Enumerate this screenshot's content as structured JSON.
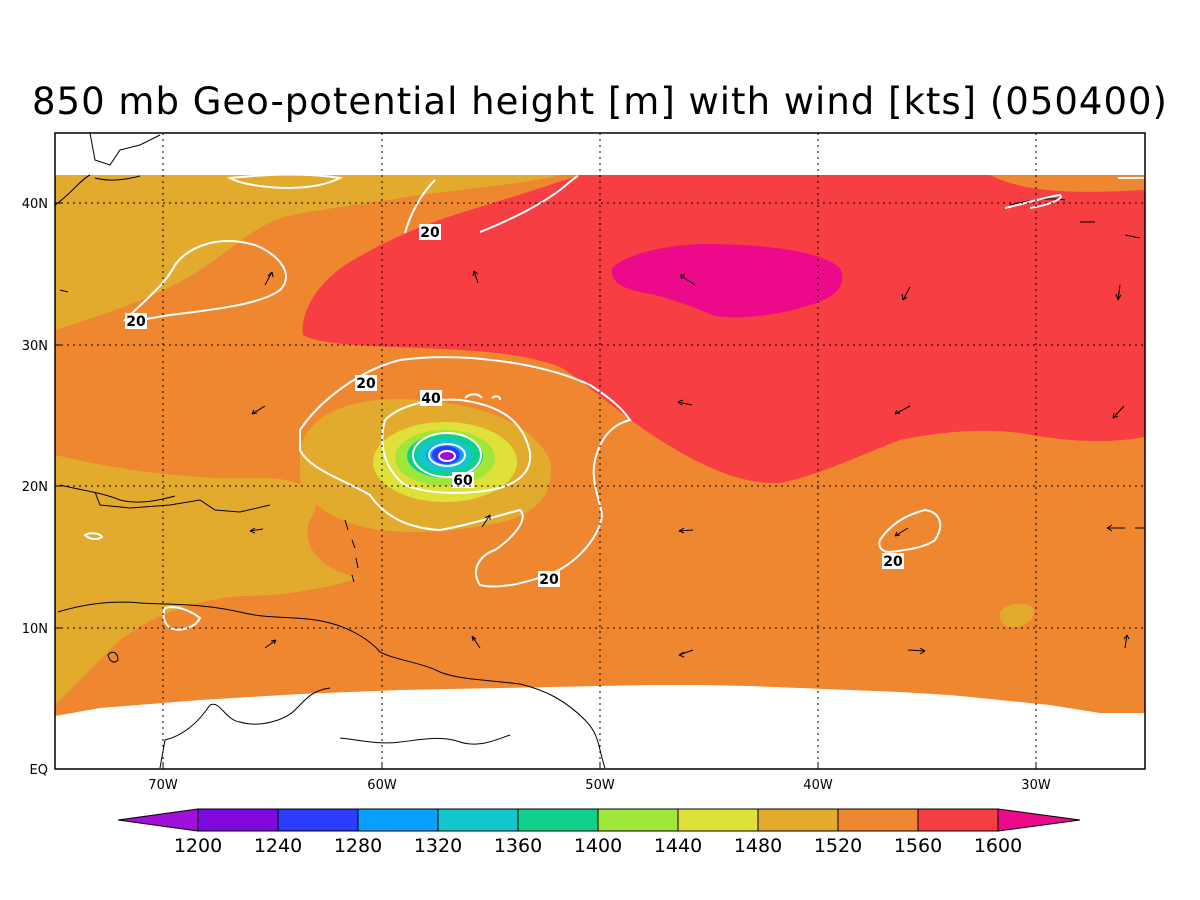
{
  "title": "850 mb Geo-potential height [m] with wind [kts] (050400)",
  "lon_labels": [
    "70W",
    "60W",
    "50W",
    "40W",
    "30W"
  ],
  "lat_labels": [
    "EQ",
    "10N",
    "20N",
    "30N",
    "40N"
  ],
  "contour_labels": [
    "20",
    "20",
    "20",
    "40",
    "60",
    "20",
    "20"
  ],
  "colorbar": {
    "labels": [
      "1200",
      "1240",
      "1280",
      "1320",
      "1360",
      "1400",
      "1440",
      "1480",
      "1520",
      "1560",
      "1600"
    ],
    "colors": [
      "#a010d8",
      "#7e08de",
      "#2b3cff",
      "#0aa0ff",
      "#11c7cc",
      "#0ed08a",
      "#9ee63a",
      "#e0e03a",
      "#e3ab2e",
      "#ef8630",
      "#f73e42",
      "#ec0a8a"
    ]
  },
  "chart_data": {
    "type": "heatmap",
    "title": "850 mb Geo-potential height [m] with wind [kts] (050400)",
    "variable": "850 mb geopotential height (shaded) with wind speed contours and wind vectors",
    "units": {
      "height": "m",
      "wind": "kts"
    },
    "x_range": [
      "75W",
      "25W"
    ],
    "y_range": [
      "EQ",
      "45N"
    ],
    "x_ticks": [
      "70W",
      "60W",
      "50W",
      "40W",
      "30W"
    ],
    "y_ticks": [
      "EQ",
      "10N",
      "20N",
      "30N",
      "40N"
    ],
    "color_levels": [
      1200,
      1240,
      1280,
      1320,
      1360,
      1400,
      1440,
      1480,
      1520,
      1560,
      1600
    ],
    "wind_contour_levels": [
      20,
      40,
      60
    ],
    "features": {
      "cyclone_center": {
        "lon": -57,
        "lat": 22,
        "min_height_range": "<1200"
      },
      "high_center": {
        "lon": -44.5,
        "lat": 34.5,
        "height_range": ">1600"
      }
    },
    "grid": true
  }
}
